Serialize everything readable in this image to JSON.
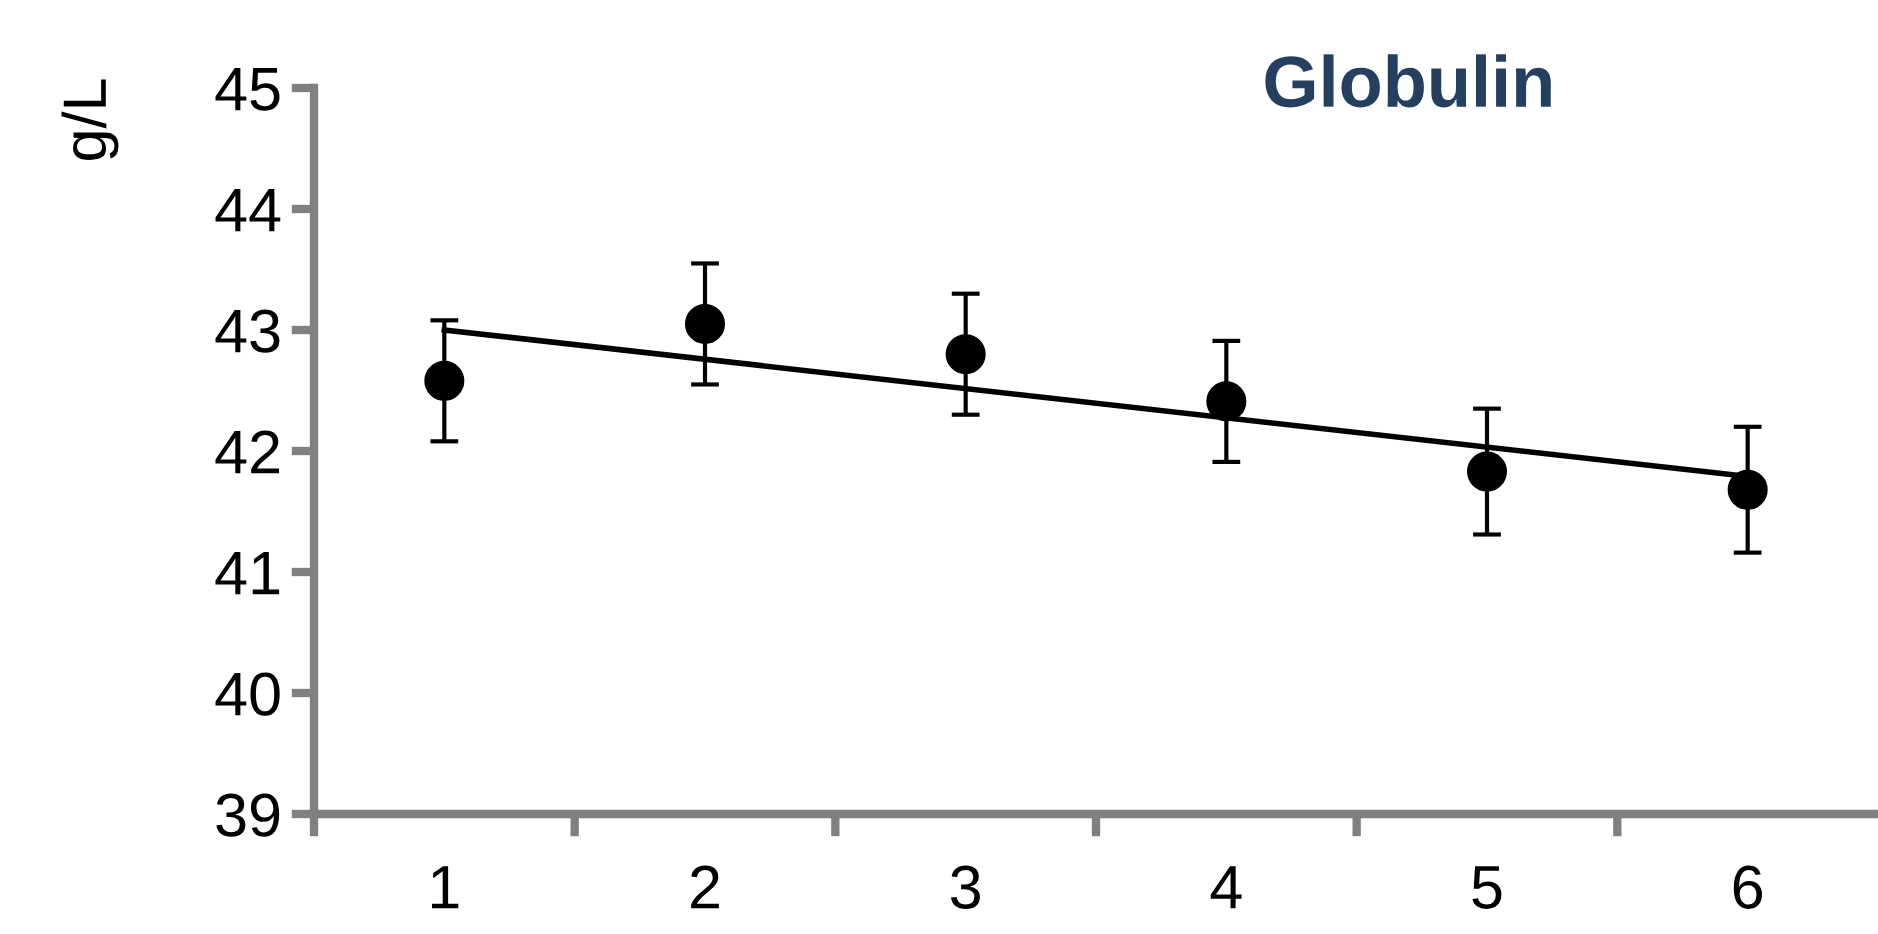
{
  "chart_data": {
    "type": "scatter",
    "title": "Globulin",
    "ylabel": "g/L",
    "categories": [
      "1",
      "2",
      "3",
      "4",
      "5",
      "6"
    ],
    "ylim": [
      39,
      45
    ],
    "yticks": [
      39,
      40,
      41,
      42,
      43,
      44,
      45
    ],
    "grid": false,
    "legend": false,
    "series": [
      {
        "marker": "circle",
        "color": "#000000",
        "values": [
          42.58,
          43.05,
          42.8,
          42.41,
          41.83,
          41.68
        ],
        "errors": [
          0.5,
          0.5,
          0.5,
          0.5,
          0.52,
          0.52
        ]
      },
      {
        "type": "line",
        "color": "#000000",
        "x": [
          "1",
          "6"
        ],
        "values": [
          43.0,
          41.79
        ],
        "line_style": "solid"
      }
    ]
  }
}
